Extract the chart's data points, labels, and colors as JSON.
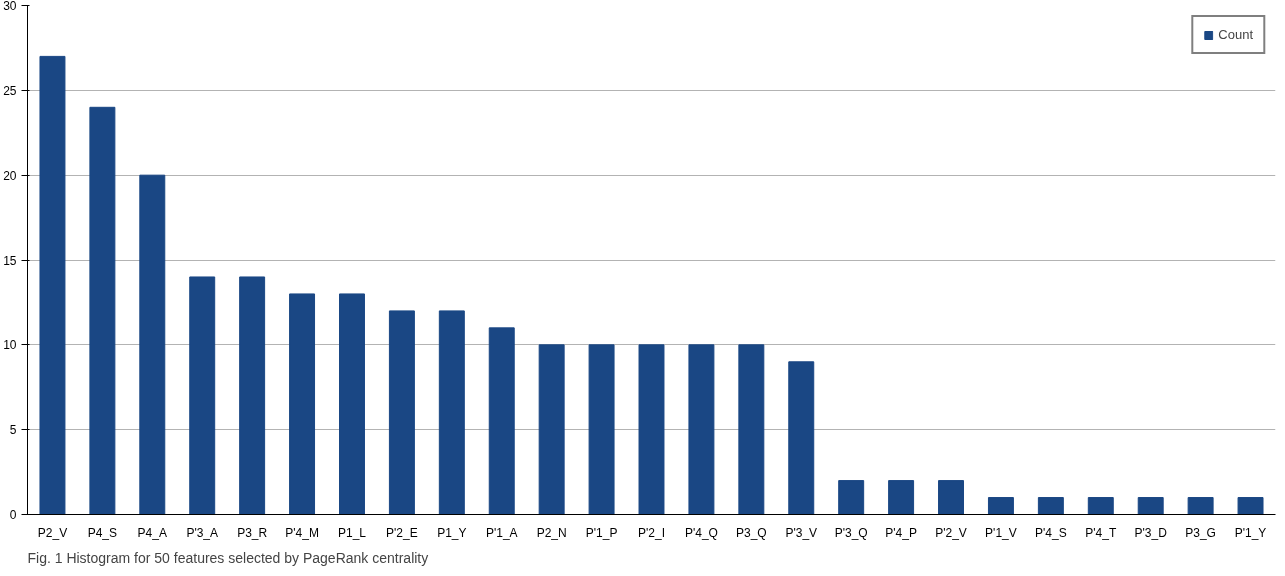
{
  "chart_data": {
    "type": "bar",
    "categories": [
      "P2_V",
      "P4_S",
      "P4_A",
      "P'3_A",
      "P3_R",
      "P'4_M",
      "P1_L",
      "P'2_E",
      "P1_Y",
      "P'1_A",
      "P2_N",
      "P'1_P",
      "P'2_I",
      "P'4_Q",
      "P3_Q",
      "P'3_V",
      "P'3_Q",
      "P'4_P",
      "P'2_V",
      "P'1_V",
      "P'4_S",
      "P'4_T",
      "P'3_D",
      "P3_G",
      "P'1_Y"
    ],
    "series": [
      {
        "name": "Count",
        "color": "#1a4784",
        "values": [
          27,
          24,
          20,
          14,
          14,
          13,
          13,
          12,
          12,
          11,
          10,
          10,
          10,
          10,
          10,
          9,
          2,
          2,
          2,
          1,
          1,
          1,
          1,
          1,
          1
        ]
      }
    ],
    "ylim": [
      0,
      30
    ],
    "yticks": [
      0,
      5,
      10,
      15,
      20,
      25,
      30
    ],
    "grid": "y",
    "legend": "top right",
    "annotations": [
      "Fig. 1  Histogram for 50 features selected by PageRank centrality"
    ]
  }
}
